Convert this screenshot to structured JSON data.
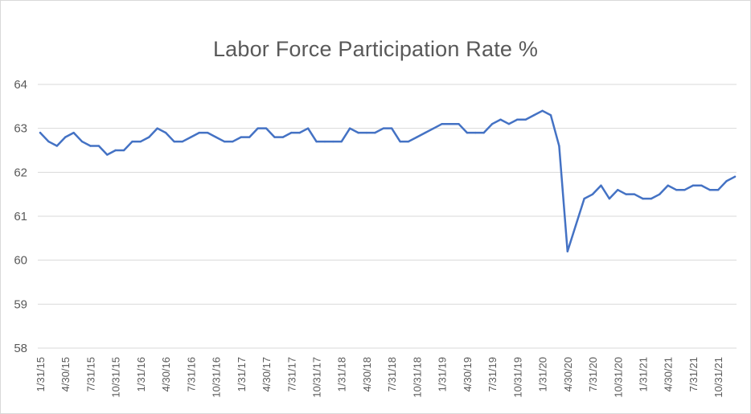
{
  "chart_data": {
    "type": "line",
    "title": "Labor Force Participation Rate %",
    "xlabel": "",
    "ylabel": "",
    "ylim": [
      58,
      64
    ],
    "yticks": [
      58,
      59,
      60,
      61,
      62,
      63,
      64
    ],
    "grid": true,
    "legend": "none",
    "x_tick_labels": [
      "1/31/15",
      "4/30/15",
      "7/31/15",
      "10/31/15",
      "1/31/16",
      "4/30/16",
      "7/31/16",
      "10/31/16",
      "1/31/17",
      "4/30/17",
      "7/31/17",
      "10/31/17",
      "1/31/18",
      "4/30/18",
      "7/31/18",
      "10/31/18",
      "1/31/19",
      "4/30/19",
      "7/31/19",
      "10/31/19",
      "1/31/20",
      "4/30/20",
      "7/31/20",
      "10/31/20",
      "1/31/21",
      "4/30/21",
      "7/31/21",
      "10/31/21"
    ],
    "series": [
      {
        "color": "#4472c4",
        "x_start": "1/31/15",
        "frequency": "monthly",
        "values": [
          62.9,
          62.7,
          62.6,
          62.8,
          62.9,
          62.7,
          62.6,
          62.6,
          62.4,
          62.5,
          62.5,
          62.7,
          62.7,
          62.8,
          63.0,
          62.9,
          62.7,
          62.7,
          62.8,
          62.9,
          62.9,
          62.8,
          62.7,
          62.7,
          62.8,
          62.8,
          63.0,
          63.0,
          62.8,
          62.8,
          62.9,
          62.9,
          63.0,
          62.7,
          62.7,
          62.7,
          62.7,
          63.0,
          62.9,
          62.9,
          62.9,
          63.0,
          63.0,
          62.7,
          62.7,
          62.8,
          62.9,
          63.0,
          63.1,
          63.1,
          63.1,
          62.9,
          62.9,
          62.9,
          63.1,
          63.2,
          63.1,
          63.2,
          63.2,
          63.3,
          63.4,
          63.3,
          62.6,
          60.2,
          60.8,
          61.4,
          61.5,
          61.7,
          61.4,
          61.6,
          61.5,
          61.5,
          61.4,
          61.4,
          61.5,
          61.7,
          61.6,
          61.6,
          61.7,
          61.7,
          61.6,
          61.6,
          61.8,
          61.9
        ]
      }
    ]
  }
}
